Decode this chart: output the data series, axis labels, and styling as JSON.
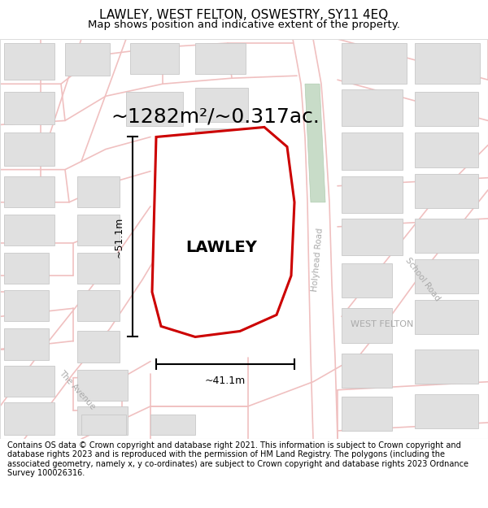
{
  "title": "LAWLEY, WEST FELTON, OSWESTRY, SY11 4EQ",
  "subtitle": "Map shows position and indicative extent of the property.",
  "area_label": "~1282m²/~0.317ac.",
  "property_name": "LAWLEY",
  "dim_width": "~41.1m",
  "dim_height": "~51.1m",
  "road_label_holyhead": "Holyhead Road",
  "road_label_school": "School Road",
  "road_label_avenue": "The Avenue",
  "road_label_west": "WEST FELTON",
  "footer": "Contains OS data © Crown copyright and database right 2021. This information is subject to Crown copyright and database rights 2023 and is reproduced with the permission of HM Land Registry. The polygons (including the associated geometry, namely x, y co-ordinates) are subject to Crown copyright and database rights 2023 Ordnance Survey 100026316.",
  "bg_color": "#ffffff",
  "map_bg": "#ffffff",
  "property_fill": "#ffffff",
  "property_edge": "#cc0000",
  "road_color": "#f0c0c0",
  "building_fill": "#e0e0e0",
  "building_edge": "#c8c8c8",
  "green_fill": "#c8dcc8",
  "green_edge": "#b0ccb0",
  "title_fontsize": 11,
  "subtitle_fontsize": 9.5,
  "area_fontsize": 18,
  "prop_fontsize": 14,
  "road_label_fontsize": 7.5,
  "footer_fontsize": 7
}
